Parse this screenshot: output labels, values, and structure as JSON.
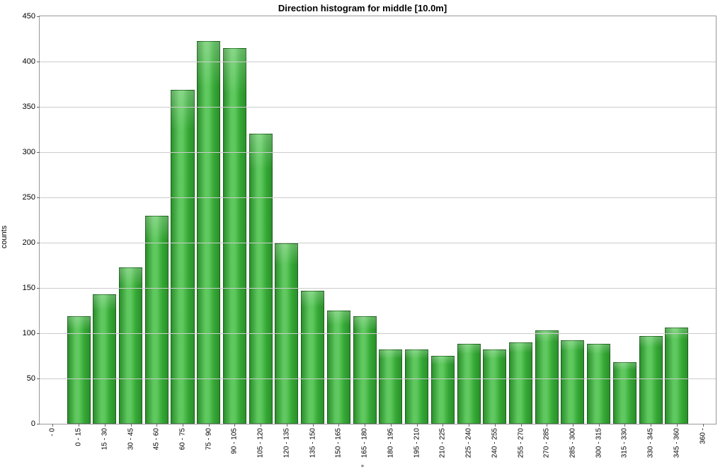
{
  "chart": {
    "type": "bar",
    "title": "Direction histogram for middle [10.0m]",
    "title_fontsize": 13,
    "ylabel": "counts",
    "xlabel": "°",
    "label_fontsize": 11,
    "ylim": [
      0,
      450
    ],
    "ytick_step": 50,
    "yticks": [
      0,
      50,
      100,
      150,
      200,
      250,
      300,
      350,
      400,
      450
    ],
    "grid_color": "#cccccc",
    "axis_color": "#999999",
    "background_color": "#ffffff",
    "tick_fontsize": 11,
    "xtick_fontsize": 10,
    "bar_width": 0.9,
    "bar_border_color": "rgba(0,0,0,0.35)",
    "bar_gradient_top": "#5fc85f",
    "bar_gradient_mid": "#34a834",
    "bar_gradient_bottom": "#2b8f2b",
    "bar_highlight": "rgba(255,255,255,0.25)",
    "categories": [
      " - 0",
      "0 - 15",
      "15 - 30",
      "30 - 45",
      "45 - 60",
      "60 - 75",
      "75 - 90",
      "90 - 105",
      "105 - 120",
      "120 - 135",
      "135 - 150",
      "150 - 165",
      "165 - 180",
      "180 - 195",
      "195 - 210",
      "210 - 225",
      "225 - 240",
      "240 - 255",
      "255 - 270",
      "270 - 285",
      "285 - 300",
      "300 - 315",
      "315 - 330",
      "330 - 345",
      "345 - 360",
      "360 - "
    ],
    "values": [
      0,
      119,
      143,
      173,
      230,
      369,
      423,
      415,
      320,
      199,
      147,
      125,
      119,
      82,
      82,
      75,
      88,
      82,
      90,
      103,
      92,
      88,
      68,
      97,
      106,
      0
    ]
  }
}
